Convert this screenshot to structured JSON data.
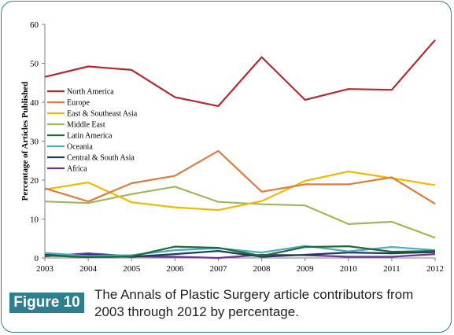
{
  "figure": {
    "label": "Figure 10",
    "caption": "The Annals of Plastic Surgery article contributors from 2003 through 2012 by percentage."
  },
  "chart_data": {
    "type": "line",
    "x": [
      "2003",
      "2004",
      "2005",
      "2006",
      "2007",
      "2008",
      "2009",
      "2010",
      "2011",
      "2012"
    ],
    "ylabel": "Percentage of Articles Published",
    "xlabel": "",
    "ylim": [
      0,
      60
    ],
    "yticks": [
      0,
      10,
      20,
      30,
      40,
      50,
      60
    ],
    "legend_position": "left, inside plot",
    "series": [
      {
        "name": "North America",
        "color": "#b5292e",
        "values": [
          46.5,
          49.2,
          48.3,
          41.3,
          39.0,
          51.6,
          40.6,
          43.4,
          43.2,
          56.0
        ]
      },
      {
        "name": "Europe",
        "color": "#e07b39",
        "values": [
          17.9,
          14.5,
          19.2,
          21.1,
          27.5,
          17.0,
          18.9,
          18.9,
          20.7,
          13.9
        ]
      },
      {
        "name": "East & Southeast Asia",
        "color": "#f5b800",
        "values": [
          17.6,
          19.4,
          14.3,
          13.0,
          12.3,
          14.6,
          19.8,
          22.2,
          20.5,
          18.7
        ]
      },
      {
        "name": "Middle East",
        "color": "#9bbb59",
        "values": [
          14.5,
          14.1,
          16.4,
          18.3,
          14.4,
          13.8,
          13.5,
          8.7,
          9.3,
          5.2
        ]
      },
      {
        "name": "Latin America",
        "color": "#1f6b36",
        "values": [
          0.6,
          0.2,
          0.4,
          2.9,
          2.6,
          0.5,
          2.8,
          3.0,
          1.6,
          1.8
        ]
      },
      {
        "name": "Oceania",
        "color": "#4bacc6",
        "values": [
          1.3,
          0.5,
          0.7,
          2.0,
          2.5,
          1.4,
          3.1,
          1.7,
          2.8,
          2.0
        ]
      },
      {
        "name": "Central & South Asia",
        "color": "#1f3a5f",
        "values": [
          0.8,
          0.8,
          0.3,
          1.0,
          1.8,
          0.3,
          0.8,
          1.4,
          1.2,
          1.5
        ]
      },
      {
        "name": "Africa",
        "color": "#7030a0",
        "values": [
          0.4,
          1.2,
          0.4,
          0.3,
          0.0,
          0.8,
          0.7,
          0.3,
          0.3,
          1.0
        ]
      }
    ]
  }
}
